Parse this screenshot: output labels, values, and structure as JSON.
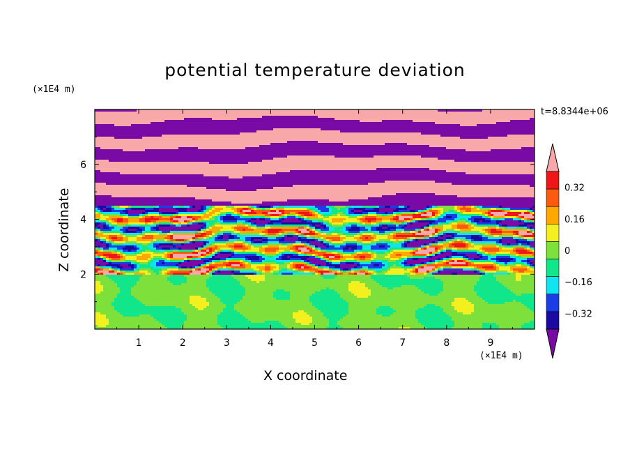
{
  "chart_data": {
    "type": "heatmap",
    "title": "potential temperature deviation",
    "xlabel": "X coordinate",
    "ylabel": "Z coordinate",
    "x_unit": "(×1E4 m)",
    "z_unit": "(×1E4 m)",
    "time_label": "t=8.8344e+06",
    "xlim": [
      0,
      10
    ],
    "ylim": [
      0,
      8
    ],
    "xticks": [
      1,
      2,
      3,
      4,
      5,
      6,
      7,
      8,
      9
    ],
    "yticks": [
      2,
      4,
      6
    ],
    "colorbar": {
      "levels": [
        -0.4,
        -0.32,
        -0.24,
        -0.16,
        -0.08,
        0,
        0.08,
        0.16,
        0.24,
        0.32,
        0.4
      ],
      "labels": [
        "0.32",
        "0.16",
        "0",
        "−0.16",
        "−0.32"
      ],
      "label_values": [
        0.32,
        0.16,
        0,
        -0.16,
        -0.32
      ],
      "colors": [
        "#7a0aa6",
        "#1a0aa0",
        "#1a3ee6",
        "#10e4ee",
        "#12e68a",
        "#7ee03a",
        "#f4f020",
        "#ffa800",
        "#ff5a10",
        "#ee1616",
        "#f8a8a8"
      ],
      "extend": "both"
    },
    "bands": [
      {
        "zmin": 7.5,
        "zmax": 8.0,
        "field": "purple-pink stripes"
      },
      {
        "zmin": 4.5,
        "zmax": 7.5,
        "field": "alternating pink and purple layers"
      },
      {
        "zmin": 2.0,
        "zmax": 4.5,
        "field": "mixed turbulent layers, all colors"
      },
      {
        "zmin": 0.0,
        "zmax": 2.0,
        "field": "green and teal near zero"
      }
    ]
  }
}
